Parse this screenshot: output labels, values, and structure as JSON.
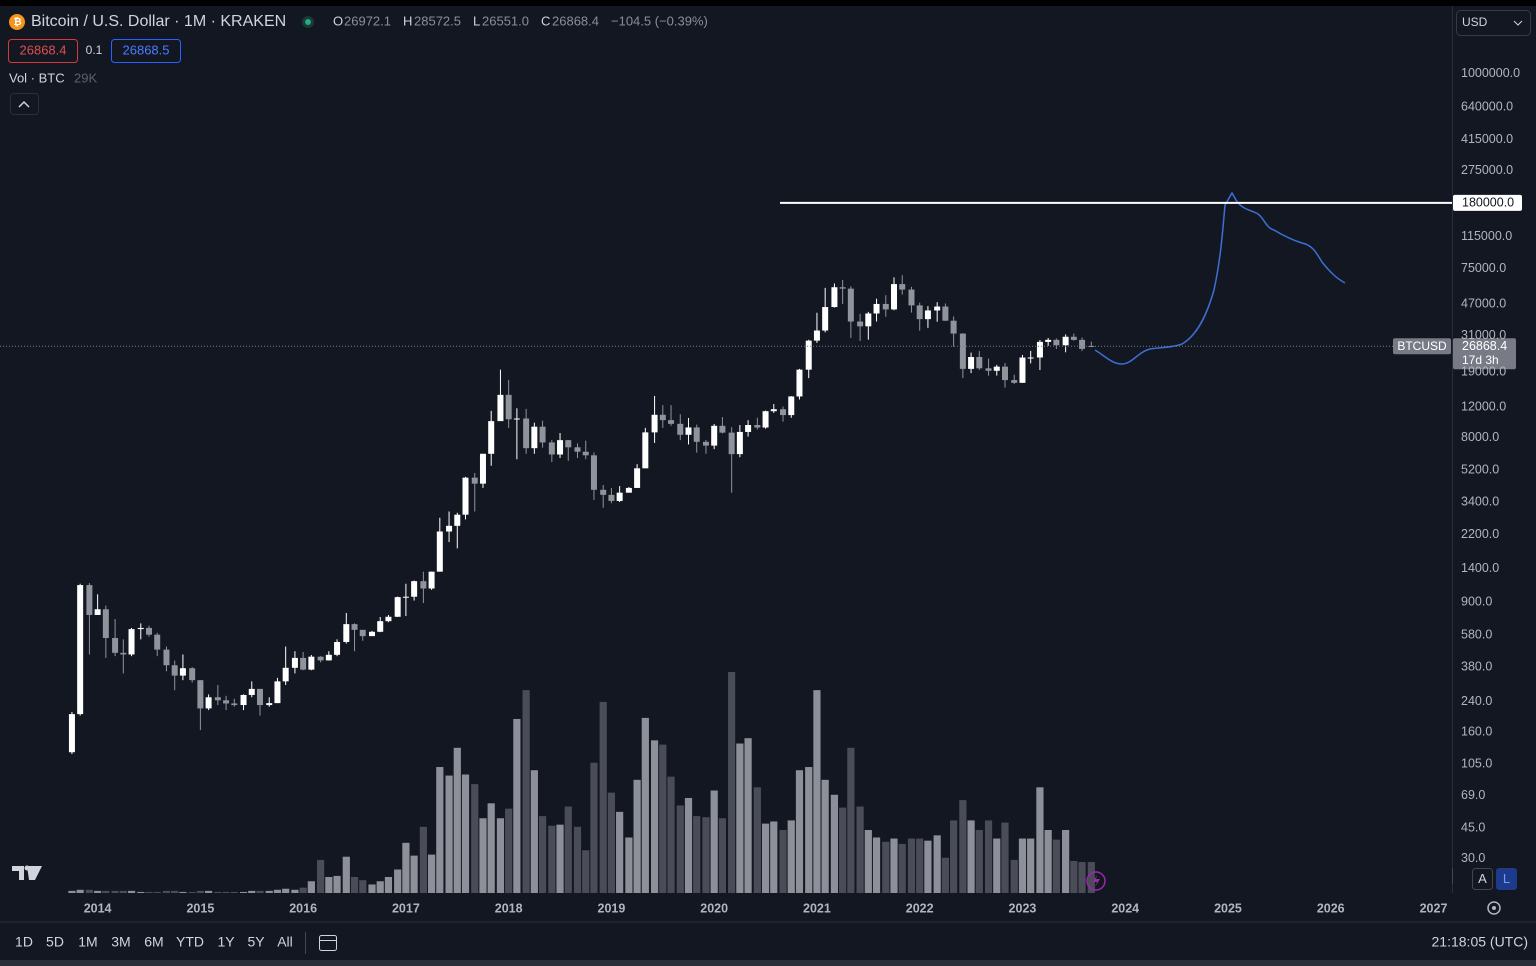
{
  "ui": {
    "symbol": "Bitcoin / U.S. Dollar · 1M · KRAKEN",
    "ohlc_letters": [
      "O",
      "H",
      "L",
      "C"
    ],
    "ohlc_values": [
      "26972.1",
      "28572.5",
      "26551.0",
      "26868.4"
    ],
    "change": "−104.5 (−0.39%)",
    "sell": "26868.4",
    "spread": "0.1",
    "buy": "26868.5",
    "volume_title": "Vol · BTC",
    "volume_last": "29K",
    "currency": "USD",
    "ticker": "BTCUSD",
    "countdown": "17d 3h",
    "intervals": [
      "1D",
      "5D",
      "1M",
      "3M",
      "6M",
      "YTD",
      "1Y",
      "5Y",
      "All"
    ],
    "clock": "21:18:05 (UTC)",
    "scale_modes": [
      "A",
      "L"
    ]
  },
  "chart_data": {
    "type": "candlestick",
    "log_scale": true,
    "grid": false,
    "up_color": "#ffffff",
    "down_color": "#8f939c",
    "volume_up_color": "#8d9099",
    "volume_down_color": "#4a4d57",
    "hline": {
      "value": 180000,
      "label": "180000.0"
    },
    "xlim": [
      2013.05,
      2027.18
    ],
    "xticks": [
      2014,
      2015,
      2016,
      2017,
      2018,
      2019,
      2020,
      2021,
      2022,
      2023,
      2024,
      2025,
      2026,
      2027
    ],
    "ylim": [
      19,
      1670000
    ],
    "yticks": [
      {
        "value": 1000000,
        "label": "1000000.0"
      },
      {
        "value": 640000,
        "label": "640000.0"
      },
      {
        "value": 415000,
        "label": "415000.0"
      },
      {
        "value": 275000,
        "label": "275000.0"
      },
      {
        "value": 115000,
        "label": "115000.0"
      },
      {
        "value": 75000,
        "label": "75000.0"
      },
      {
        "value": 47000,
        "label": "47000.0"
      },
      {
        "value": 31000,
        "label": "31000.0"
      },
      {
        "value": 19000,
        "label": "19000.0"
      },
      {
        "value": 12000,
        "label": "12000.0"
      },
      {
        "value": 8000,
        "label": "8000.0"
      },
      {
        "value": 5200,
        "label": "5200.0"
      },
      {
        "value": 3400,
        "label": "3400.0"
      },
      {
        "value": 2200,
        "label": "2200.0"
      },
      {
        "value": 1400,
        "label": "1400.0"
      },
      {
        "value": 900,
        "label": "900.0"
      },
      {
        "value": 580,
        "label": "580.0"
      },
      {
        "value": 380,
        "label": "380.0"
      },
      {
        "value": 240,
        "label": "240.0"
      },
      {
        "value": 160,
        "label": "160.0"
      },
      {
        "value": 105,
        "label": "105.0"
      },
      {
        "value": 69,
        "label": "69.0"
      },
      {
        "value": 45,
        "label": "45.0"
      },
      {
        "value": 30,
        "label": "30.0"
      }
    ],
    "x": [
      2013.75,
      2013.83,
      2013.92,
      2014,
      2014.08,
      2014.17,
      2014.25,
      2014.33,
      2014.42,
      2014.5,
      2014.58,
      2014.67,
      2014.75,
      2014.83,
      2014.92,
      2015,
      2015.08,
      2015.17,
      2015.25,
      2015.33,
      2015.42,
      2015.5,
      2015.58,
      2015.67,
      2015.75,
      2015.83,
      2015.92,
      2016,
      2016.08,
      2016.17,
      2016.25,
      2016.33,
      2016.42,
      2016.5,
      2016.58,
      2016.67,
      2016.75,
      2016.83,
      2016.92,
      2017,
      2017.08,
      2017.17,
      2017.25,
      2017.33,
      2017.42,
      2017.5,
      2017.58,
      2017.67,
      2017.75,
      2017.83,
      2017.92,
      2018,
      2018.08,
      2018.17,
      2018.25,
      2018.33,
      2018.42,
      2018.5,
      2018.58,
      2018.67,
      2018.75,
      2018.83,
      2018.92,
      2019,
      2019.08,
      2019.17,
      2019.25,
      2019.33,
      2019.42,
      2019.5,
      2019.58,
      2019.67,
      2019.75,
      2019.83,
      2019.92,
      2020,
      2020.08,
      2020.17,
      2020.25,
      2020.33,
      2020.42,
      2020.5,
      2020.58,
      2020.67,
      2020.75,
      2020.83,
      2020.92,
      2021,
      2021.08,
      2021.17,
      2021.25,
      2021.33,
      2021.42,
      2021.5,
      2021.58,
      2021.67,
      2021.75,
      2021.83,
      2021.92,
      2022,
      2022.08,
      2022.17,
      2022.25,
      2022.33,
      2022.42,
      2022.5,
      2022.58,
      2022.67,
      2022.75,
      2022.83,
      2022.92,
      2023,
      2023.08,
      2023.17,
      2023.25,
      2023.33,
      2023.42,
      2023.5,
      2023.58,
      2023.67
    ],
    "open": [
      123,
      204,
      1130,
      760,
      820,
      560,
      460,
      450,
      630,
      640,
      585,
      480,
      390,
      340,
      375,
      320,
      220,
      255,
      245,
      235,
      230,
      263,
      285,
      230,
      236,
      315,
      377,
      430,
      368,
      437,
      416,
      448,
      531,
      673,
      624,
      574,
      608,
      700,
      742,
      963,
      968,
      1190,
      1080,
      1350,
      2300,
      2480,
      2875,
      4700,
      4340,
      6450,
      9950,
      14100,
      10200,
      10300,
      6950,
      9240,
      7500,
      6390,
      7730,
      7030,
      6630,
      6320,
      4000,
      3740,
      3450,
      3850,
      4100,
      5320,
      8570,
      10820,
      10080,
      9600,
      8300,
      9150,
      7560,
      7190,
      9350,
      8540,
      6420,
      8620,
      9450,
      9140,
      11350,
      11650,
      10780,
      13800,
      19700,
      28950,
      33100,
      45200,
      58800,
      57700,
      37300,
      35000,
      41500,
      47100,
      43800,
      61300,
      57000,
      46200,
      38500,
      43200,
      45500,
      37700,
      31800,
      19900,
      23300,
      20050,
      19400,
      20500,
      17150,
      16540,
      23130,
      23140,
      28470,
      29250,
      27220,
      30470,
      29230,
      26972.1
    ],
    "high": [
      210,
      1150,
      1160,
      1000,
      860,
      720,
      550,
      640,
      680,
      660,
      600,
      500,
      415,
      450,
      380,
      320,
      265,
      300,
      260,
      250,
      265,
      315,
      285,
      255,
      330,
      500,
      470,
      465,
      447,
      440,
      470,
      550,
      780,
      680,
      620,
      615,
      740,
      760,
      970,
      1150,
      1200,
      1350,
      1350,
      2760,
      3000,
      2950,
      4750,
      5000,
      6450,
      11400,
      19700,
      17200,
      11800,
      11700,
      9750,
      10000,
      7750,
      8500,
      7750,
      7400,
      7680,
      6560,
      4260,
      4100,
      4200,
      4150,
      5620,
      9100,
      13900,
      12300,
      12300,
      10900,
      10370,
      9500,
      7750,
      9580,
      10500,
      9180,
      9450,
      10070,
      10400,
      11450,
      12480,
      12080,
      13870,
      19900,
      29300,
      41900,
      58300,
      61800,
      64800,
      59500,
      41300,
      42400,
      50500,
      52900,
      67000,
      69000,
      59100,
      47900,
      45800,
      48200,
      47400,
      39900,
      31900,
      24700,
      25200,
      22800,
      21000,
      21500,
      18400,
      23950,
      25250,
      29200,
      30000,
      29800,
      31400,
      31800,
      30200,
      28572.5
    ],
    "low": [
      120,
      200,
      450,
      760,
      430,
      440,
      350,
      440,
      550,
      570,
      440,
      360,
      280,
      320,
      310,
      165,
      215,
      230,
      215,
      225,
      215,
      255,
      200,
      225,
      236,
      300,
      350,
      365,
      365,
      405,
      415,
      440,
      520,
      470,
      540,
      590,
      605,
      690,
      740,
      750,
      920,
      890,
      1060,
      1350,
      2000,
      1840,
      2700,
      3000,
      4100,
      5500,
      10700,
      9100,
      6000,
      6450,
      6450,
      7000,
      5780,
      6100,
      5880,
      6100,
      6000,
      3500,
      3150,
      3350,
      3400,
      3850,
      4100,
      5320,
      7450,
      9100,
      9350,
      7730,
      7300,
      6550,
      6450,
      6860,
      8450,
      3850,
      6160,
      8100,
      8900,
      9000,
      11100,
      9880,
      10400,
      13250,
      17600,
      28100,
      32300,
      44900,
      47100,
      30000,
      28800,
      29300,
      37300,
      39700,
      43300,
      53300,
      42000,
      33000,
      34300,
      37200,
      37600,
      26700,
      17600,
      18800,
      19600,
      18200,
      18200,
      15500,
      16300,
      16500,
      21400,
      19600,
      27000,
      25900,
      24800,
      28900,
      25200,
      26551.0
    ],
    "close": [
      204,
      1130,
      760,
      820,
      560,
      460,
      450,
      630,
      640,
      585,
      480,
      390,
      340,
      375,
      320,
      220,
      255,
      245,
      235,
      230,
      263,
      285,
      230,
      236,
      315,
      377,
      430,
      368,
      437,
      416,
      448,
      531,
      673,
      624,
      574,
      608,
      700,
      742,
      963,
      968,
      1190,
      1080,
      1350,
      2300,
      2480,
      2875,
      4700,
      4340,
      6450,
      9950,
      14100,
      10200,
      10300,
      6950,
      9240,
      7500,
      6390,
      7730,
      7030,
      6630,
      6320,
      4000,
      3740,
      3450,
      3850,
      4100,
      5320,
      8570,
      10820,
      10080,
      9600,
      8300,
      9150,
      7560,
      7190,
      9350,
      8540,
      6420,
      8620,
      9450,
      9140,
      11350,
      11650,
      10780,
      13800,
      19700,
      28950,
      33100,
      45200,
      58800,
      57700,
      37300,
      35000,
      41500,
      47100,
      43800,
      61300,
      57000,
      46200,
      38500,
      43200,
      45500,
      37700,
      31800,
      19900,
      23300,
      20050,
      19400,
      20500,
      17150,
      16540,
      23130,
      23140,
      28470,
      29250,
      27220,
      30470,
      29230,
      25940,
      26868.4
    ],
    "volume": [
      2000,
      3000,
      3000,
      2000,
      2000,
      2000,
      2000,
      2000,
      1000,
      1000,
      1000,
      2000,
      2000,
      1000,
      1000,
      2000,
      2000,
      1000,
      1000,
      1000,
      1000,
      2000,
      2000,
      2000,
      3000,
      4000,
      3000,
      5000,
      11000,
      31000,
      15000,
      16000,
      34000,
      15000,
      12000,
      8000,
      11000,
      15000,
      22000,
      47000,
      35000,
      62000,
      36000,
      118000,
      110000,
      136000,
      111000,
      102000,
      70000,
      84000,
      70000,
      79000,
      163000,
      190000,
      115000,
      72000,
      63000,
      64000,
      81000,
      62000,
      40000,
      122000,
      179000,
      94000,
      76000,
      52000,
      106000,
      164000,
      143000,
      139000,
      109000,
      82000,
      89000,
      72000,
      71000,
      96000,
      70000,
      207000,
      140000,
      145000,
      99000,
      65000,
      67000,
      59000,
      68000,
      115000,
      118000,
      190000,
      106000,
      92000,
      80000,
      136000,
      81000,
      59000,
      52000,
      48000,
      51000,
      46000,
      51000,
      51000,
      49000,
      54000,
      33000,
      68000,
      87000,
      68000,
      59000,
      68000,
      51000,
      66000,
      31000,
      51000,
      51000,
      99000,
      59000,
      50000,
      59000,
      30000,
      29000,
      29000
    ]
  }
}
